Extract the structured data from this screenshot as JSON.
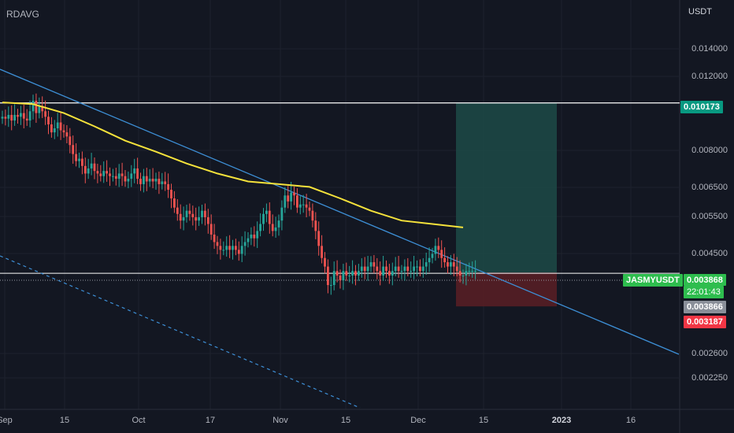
{
  "indicator_label": "RDAVG",
  "currency": "USDT",
  "symbol": "JASMYUSDT",
  "countdown": "22:01:43",
  "colors": {
    "background": "#131722",
    "grid": "#1e222d",
    "up": "#26a69a",
    "down": "#ef5350",
    "ma": "#f5e23b",
    "trendline": "#3d8fd6",
    "level": "#ffffff",
    "profit_zone": "#1d4a46",
    "loss_zone": "#5a1f25",
    "badge_green": "#089981",
    "badge_current": "#2ebd4e",
    "badge_grey": "#8a8f99",
    "badge_red": "#f23645"
  },
  "badges": {
    "target": "0.010173",
    "current": "0.003868",
    "entry": "0.003866",
    "stop": "0.003187"
  },
  "chart_data": {
    "type": "candlestick",
    "scale": "log",
    "price_ticks": [
      "0.014000",
      "0.012000",
      "0.008000",
      "0.006500",
      "0.005500",
      "0.004500",
      "0.002600",
      "0.002250"
    ],
    "date_ticks": [
      "Sep",
      "15",
      "Oct",
      "17",
      "Nov",
      "15",
      "Dec",
      "15",
      "2023",
      "16"
    ],
    "series": [
      {
        "name": "candles",
        "close": [
          0.0094,
          0.0093,
          0.0095,
          0.0092,
          0.0095,
          0.0094,
          0.0096,
          0.0093,
          0.0092,
          0.0097,
          0.0103,
          0.0096,
          0.01,
          0.0097,
          0.0094,
          0.009,
          0.0086,
          0.0088,
          0.0091,
          0.0087,
          0.0086,
          0.0084,
          0.008,
          0.0076,
          0.0073,
          0.0074,
          0.0071,
          0.0068,
          0.007,
          0.0072,
          0.0069,
          0.0068,
          0.0067,
          0.0069,
          0.0068,
          0.0067,
          0.0067,
          0.0066,
          0.0068,
          0.0067,
          0.0065,
          0.0066,
          0.0068,
          0.007,
          0.0066,
          0.0064,
          0.0067,
          0.0065,
          0.0066,
          0.0065,
          0.0066,
          0.0064,
          0.0065,
          0.0064,
          0.0062,
          0.0059,
          0.0056,
          0.0054,
          0.0052,
          0.0053,
          0.0055,
          0.0054,
          0.0053,
          0.0052,
          0.0053,
          0.0055,
          0.0053,
          0.0051,
          0.0048,
          0.0046,
          0.0045,
          0.0044,
          0.0044,
          0.0045,
          0.0044,
          0.0045,
          0.0044,
          0.0043,
          0.0045,
          0.0046,
          0.0047,
          0.0048,
          0.0047,
          0.0049,
          0.0051,
          0.0054,
          0.0055,
          0.0051,
          0.0049,
          0.005,
          0.0052,
          0.0056,
          0.006,
          0.0058,
          0.0061,
          0.006,
          0.0056,
          0.0057,
          0.0057,
          0.0056,
          0.0055,
          0.0052,
          0.0049,
          0.0045,
          0.0042,
          0.004,
          0.0036,
          0.0036,
          0.0039,
          0.0038,
          0.0037,
          0.0039,
          0.0038,
          0.0038,
          0.0039,
          0.0038,
          0.0039,
          0.004,
          0.0039,
          0.004,
          0.0041,
          0.004,
          0.0039,
          0.0038,
          0.004,
          0.0039,
          0.0038,
          0.0039,
          0.004,
          0.0039,
          0.0039,
          0.004,
          0.0039,
          0.0039,
          0.004,
          0.004,
          0.0039,
          0.004,
          0.0041,
          0.0042,
          0.0043,
          0.0045,
          0.0044,
          0.0042,
          0.0041,
          0.004,
          0.0041,
          0.004,
          0.0039,
          0.0038,
          0.0038,
          0.0039,
          0.0039,
          0.0039,
          0.0039
        ]
      },
      {
        "name": "moving-average",
        "x_index": [
          0,
          10,
          20,
          30,
          40,
          50,
          60,
          70,
          80,
          90,
          100,
          110,
          120,
          130,
          140,
          150
        ],
        "values": [
          0.0102,
          0.0101,
          0.0096,
          0.0089,
          0.0082,
          0.0077,
          0.0072,
          0.0068,
          0.0065,
          0.0064,
          0.0063,
          0.0059,
          0.0055,
          0.0052,
          0.0051,
          0.005
        ]
      }
    ],
    "levels": [
      0.010173,
      0.003866
    ],
    "position": {
      "target": 0.010173,
      "entry": 0.003866,
      "stop": 0.003187
    }
  }
}
